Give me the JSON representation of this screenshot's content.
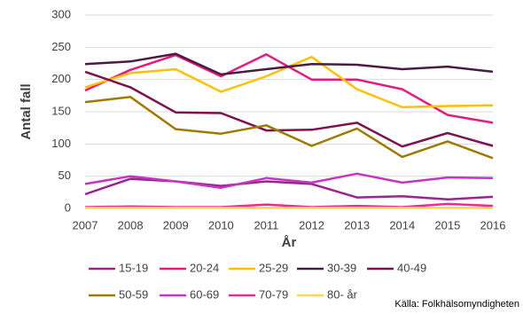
{
  "chart_data": {
    "type": "line",
    "y_label": "Antal fall",
    "x_label": "År",
    "source": "Källa: Folkhälsomyndigheten",
    "categories": [
      "2007",
      "2008",
      "2009",
      "2010",
      "2011",
      "2012",
      "2013",
      "2014",
      "2015",
      "2016"
    ],
    "ylim": [
      0,
      300
    ],
    "yticks": [
      0,
      50,
      100,
      150,
      200,
      250,
      300
    ],
    "grid": true,
    "series": [
      {
        "name": "15-19",
        "color": "#9b2390",
        "values": [
          22,
          46,
          42,
          35,
          42,
          38,
          17,
          19,
          14,
          18
        ]
      },
      {
        "name": "20-24",
        "color": "#e6197f",
        "values": [
          183,
          215,
          238,
          205,
          239,
          200,
          200,
          185,
          145,
          133
        ]
      },
      {
        "name": "25-29",
        "color": "#ffc000",
        "values": [
          188,
          210,
          216,
          181,
          205,
          235,
          185,
          157,
          159,
          160
        ]
      },
      {
        "name": "30-39",
        "color": "#4b1a44",
        "values": [
          224,
          228,
          240,
          208,
          216,
          224,
          223,
          216,
          220,
          212
        ]
      },
      {
        "name": "40-49",
        "color": "#7d1150",
        "values": [
          212,
          188,
          149,
          148,
          121,
          122,
          133,
          96,
          117,
          97
        ]
      },
      {
        "name": "50-59",
        "color": "#9e7b00",
        "values": [
          165,
          173,
          123,
          116,
          129,
          97,
          124,
          80,
          104,
          78
        ]
      },
      {
        "name": "60-69",
        "color": "#c535c3",
        "values": [
          38,
          50,
          42,
          32,
          47,
          40,
          54,
          40,
          48,
          47
        ]
      },
      {
        "name": "70-79",
        "color": "#ee2a8f",
        "values": [
          2,
          3,
          2,
          2,
          6,
          2,
          4,
          2,
          7,
          4
        ]
      },
      {
        "name": "80- år",
        "color": "#ffd54a",
        "values": [
          1,
          1,
          1,
          1,
          1,
          1,
          1,
          1,
          1,
          1
        ]
      }
    ]
  }
}
